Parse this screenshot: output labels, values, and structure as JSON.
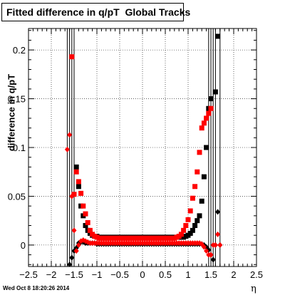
{
  "chart_data": {
    "type": "scatter",
    "title": "Fitted difference in q/pT  Global Tracks",
    "xlabel": "η",
    "ylabel": "difference in q/pT",
    "xlim": [
      -2.5,
      2.5
    ],
    "ylim": [
      -0.022,
      0.222
    ],
    "x_ticks": [
      -2.5,
      -2,
      -1.5,
      -1,
      -0.5,
      0,
      0.5,
      1,
      1.5,
      2,
      2.5
    ],
    "x_tick_labels": [
      "−2.5",
      "−2",
      "−1.5",
      "−1",
      "−0.5",
      "0",
      "0.5",
      "1",
      "1.5",
      "2",
      "2.5"
    ],
    "y_ticks": [
      0,
      0.05,
      0.1,
      0.15,
      0.2
    ],
    "y_tick_labels": [
      "0",
      "0.05",
      "0.1",
      "0.15",
      "0.2"
    ],
    "grid": true,
    "legend": "none",
    "series": [
      {
        "color": "#000000",
        "marker": "square",
        "x": [
          -1.45,
          -1.4,
          -1.35,
          -1.3,
          -1.25,
          -1.2,
          -1.15,
          -1.1,
          -1.05,
          -1.0,
          -0.95,
          -0.9,
          -0.85,
          -0.8,
          -0.75,
          -0.7,
          -0.65,
          -0.6,
          -0.55,
          -0.5,
          -0.45,
          -0.4,
          -0.35,
          -0.3,
          -0.25,
          -0.2,
          -0.15,
          -0.1,
          -0.05,
          0.0,
          0.05,
          0.1,
          0.15,
          0.2,
          0.25,
          0.3,
          0.35,
          0.4,
          0.45,
          0.5,
          0.55,
          0.6,
          0.65,
          0.7,
          0.75,
          0.8,
          0.85,
          0.9,
          0.95,
          1.0,
          1.05,
          1.1,
          1.15,
          1.2,
          1.25,
          1.3,
          1.35,
          1.4,
          1.45,
          1.5,
          1.55,
          1.6,
          1.65
        ],
        "y": [
          0.08,
          0.06,
          0.04,
          0.03,
          0.02,
          0.015,
          0.012,
          0.01,
          0.009,
          0.009,
          0.008,
          0.008,
          0.008,
          0.008,
          0.008,
          0.008,
          0.008,
          0.008,
          0.008,
          0.008,
          0.008,
          0.008,
          0.008,
          0.008,
          0.008,
          0.008,
          0.008,
          0.008,
          0.008,
          0.008,
          0.008,
          0.008,
          0.008,
          0.008,
          0.008,
          0.008,
          0.008,
          0.008,
          0.008,
          0.008,
          0.008,
          0.008,
          0.008,
          0.008,
          0.008,
          0.008,
          0.008,
          0.008,
          0.009,
          0.01,
          0.012,
          0.015,
          0.02,
          0.025,
          0.03,
          0.045,
          0.07,
          0.1,
          0.14,
          0.15,
          0.225,
          0.157,
          0.214
        ]
      },
      {
        "color": "#ff0000",
        "marker": "square",
        "x": [
          -1.55,
          -1.5,
          -1.45,
          -1.4,
          -1.35,
          -1.3,
          -1.25,
          -1.2,
          -1.15,
          -1.1,
          -1.05,
          -1.0,
          -0.95,
          -0.9,
          -0.85,
          -0.8,
          -0.75,
          -0.7,
          -0.65,
          -0.6,
          -0.55,
          -0.5,
          -0.45,
          -0.4,
          -0.35,
          -0.3,
          -0.25,
          -0.2,
          -0.15,
          -0.1,
          -0.05,
          0.0,
          0.05,
          0.1,
          0.15,
          0.2,
          0.25,
          0.3,
          0.35,
          0.4,
          0.45,
          0.5,
          0.55,
          0.6,
          0.65,
          0.7,
          0.75,
          0.8,
          0.85,
          0.9,
          0.95,
          1.0,
          1.05,
          1.1,
          1.15,
          1.2,
          1.25,
          1.3,
          1.35,
          1.4,
          1.45,
          1.5
        ],
        "y": [
          0.193,
          0.052,
          0.075,
          0.065,
          0.053,
          0.04,
          0.032,
          0.023,
          0.015,
          0.011,
          0.009,
          0.008,
          0.007,
          0.007,
          0.007,
          0.007,
          0.007,
          0.007,
          0.007,
          0.007,
          0.007,
          0.007,
          0.007,
          0.007,
          0.007,
          0.007,
          0.007,
          0.007,
          0.007,
          0.007,
          0.007,
          0.007,
          0.007,
          0.007,
          0.007,
          0.007,
          0.007,
          0.007,
          0.007,
          0.007,
          0.007,
          0.007,
          0.007,
          0.007,
          0.007,
          0.007,
          0.008,
          0.009,
          0.011,
          0.015,
          0.02,
          0.026,
          0.035,
          0.048,
          0.06,
          0.075,
          0.095,
          0.12,
          0.125,
          0.13,
          0.135,
          0.14
        ]
      },
      {
        "color": "#000000",
        "marker": "diamond",
        "x": [
          -1.6,
          -1.55,
          -1.5,
          -1.45,
          -1.4,
          -1.35,
          -1.3,
          -1.25,
          -1.2,
          -1.15,
          -1.1,
          -1.05,
          -1.0,
          -0.95,
          -0.9,
          -0.85,
          -0.8,
          -0.75,
          -0.7,
          -0.65,
          -0.6,
          -0.55,
          -0.5,
          -0.45,
          -0.4,
          -0.35,
          -0.3,
          -0.25,
          -0.2,
          -0.15,
          -0.1,
          -0.05,
          0.0,
          0.05,
          0.1,
          0.15,
          0.2,
          0.25,
          0.3,
          0.35,
          0.4,
          0.45,
          0.5,
          0.55,
          0.6,
          0.65,
          0.7,
          0.75,
          0.8,
          0.85,
          0.9,
          0.95,
          1.0,
          1.05,
          1.1,
          1.15,
          1.2,
          1.25,
          1.3,
          1.35,
          1.4,
          1.45,
          1.5,
          1.55,
          1.6,
          1.65,
          1.7
        ],
        "y": [
          -0.02,
          -0.013,
          -0.006,
          -0.003,
          0.002,
          0.003,
          0.003,
          0.002,
          0.002,
          0.002,
          0.002,
          0.002,
          0.001,
          0.001,
          0.001,
          0.001,
          0.001,
          0.001,
          0.001,
          0.001,
          0.001,
          0.001,
          0.001,
          0.001,
          0.001,
          0.001,
          0.001,
          0.001,
          0.001,
          0.001,
          0.001,
          0.001,
          0.001,
          0.001,
          0.001,
          0.001,
          0.001,
          0.001,
          0.001,
          0.001,
          0.001,
          0.001,
          0.001,
          0.001,
          0.001,
          0.001,
          0.001,
          0.001,
          0.001,
          0.001,
          0.001,
          0.001,
          0.001,
          0.001,
          0.001,
          0.001,
          0.001,
          0.001,
          0.001,
          0.0,
          -0.002,
          -0.005,
          -0.01,
          -0.015,
          0.0,
          0.034,
          0.0
        ]
      },
      {
        "color": "#ff0000",
        "marker": "diamond",
        "x": [
          -1.65,
          -1.6,
          -1.55,
          -1.5,
          -1.45,
          -1.4,
          -1.35,
          -1.3,
          -1.25,
          -1.2,
          -1.15,
          -1.1,
          -1.05,
          -1.0,
          -0.95,
          -0.9,
          -0.85,
          -0.8,
          -0.75,
          -0.7,
          -0.65,
          -0.6,
          -0.55,
          -0.5,
          -0.45,
          -0.4,
          -0.35,
          -0.3,
          -0.25,
          -0.2,
          -0.15,
          -0.1,
          -0.05,
          0.0,
          0.05,
          0.1,
          0.15,
          0.2,
          0.25,
          0.3,
          0.35,
          0.4,
          0.45,
          0.5,
          0.55,
          0.6,
          0.65,
          0.7,
          0.75,
          0.8,
          0.85,
          0.9,
          0.95,
          1.0,
          1.05,
          1.1,
          1.15,
          1.2,
          1.25,
          1.3,
          1.35,
          1.4,
          1.45,
          1.5,
          1.55,
          1.6,
          1.65,
          1.7
        ],
        "y": [
          0.098,
          0.113,
          0.05,
          0.015,
          -0.006,
          0.0,
          0.004,
          0.005,
          0.004,
          0.003,
          0.002,
          0.002,
          0.002,
          0.002,
          0.002,
          0.002,
          0.002,
          0.002,
          0.002,
          0.002,
          0.002,
          0.002,
          0.002,
          0.002,
          0.002,
          0.002,
          0.002,
          0.002,
          0.002,
          0.002,
          0.002,
          0.002,
          0.002,
          0.002,
          0.002,
          0.002,
          0.002,
          0.002,
          0.002,
          0.002,
          0.002,
          0.002,
          0.002,
          0.002,
          0.002,
          0.002,
          0.002,
          0.002,
          0.002,
          0.002,
          0.002,
          0.002,
          0.002,
          0.002,
          0.002,
          0.002,
          0.002,
          0.002,
          0.002,
          0.001,
          -0.002,
          -0.006,
          -0.01,
          -0.01,
          0.0,
          0.0,
          0.011,
          0.0
        ]
      }
    ]
  },
  "footer": {
    "timestamp": "Wed Oct  8 18:20:26 2014"
  }
}
